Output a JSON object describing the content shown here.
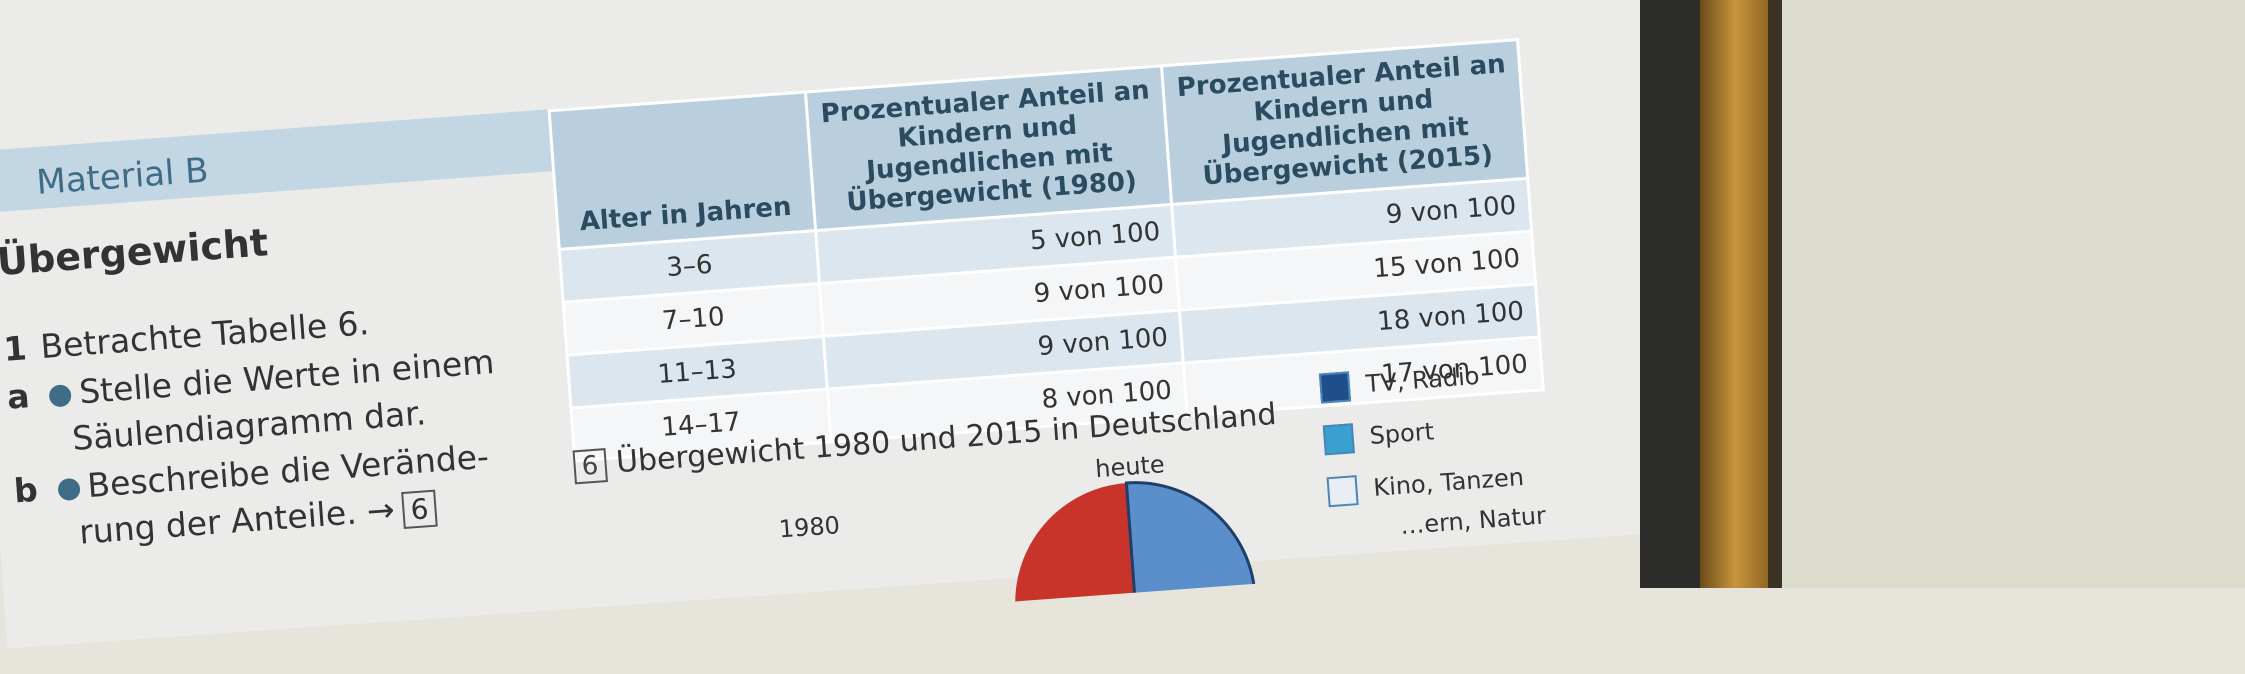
{
  "material": "Material B",
  "title": "Übergewicht",
  "tasks": {
    "t1_num": "1",
    "t1_text": "Betrachte Tabelle 6.",
    "a_label": "a",
    "a_line1": "Stelle die Werte in einem",
    "a_line2": "Säulendiagramm dar.",
    "b_label": "b",
    "b_line1": "Beschreibe die Verände-",
    "b_line2": "rung der Anteile.",
    "b_arrow": "→",
    "b_ref": "6"
  },
  "table": {
    "headers": [
      "Alter in Jahren",
      "Prozentualer Anteil an Kindern und Jugendlichen mit Übergewicht (1980)",
      "Prozentualer Anteil an Kindern und Jugendlichen mit Übergewicht (2015)"
    ],
    "rows": [
      [
        "3–6",
        "5 von 100",
        "9 von 100"
      ],
      [
        "7–10",
        "9 von 100",
        "15 von 100"
      ],
      [
        "11–13",
        "9 von 100",
        "18 von 100"
      ],
      [
        "14–17",
        "8 von 100",
        "17 von 100"
      ]
    ]
  },
  "caption": {
    "fig": "6",
    "text": "Übergewicht 1980 und 2015 in Deutschland"
  },
  "pie_labels": {
    "left": "1980",
    "right": "heute"
  },
  "legend": [
    {
      "label": "TV, Radio",
      "color": "#1f4f8a"
    },
    {
      "label": "Sport",
      "color": "#3aa0d0"
    },
    {
      "label": "Kino, Tanzen",
      "color": "#e8eef4"
    },
    {
      "label": "…ern, Natur",
      "color": "#e8eef4"
    }
  ],
  "colors": {
    "accent": "#3f6c86",
    "header_bg": "#b9cfde",
    "pie_red": "#c8342a",
    "pie_blue": "#5b8fcb"
  }
}
